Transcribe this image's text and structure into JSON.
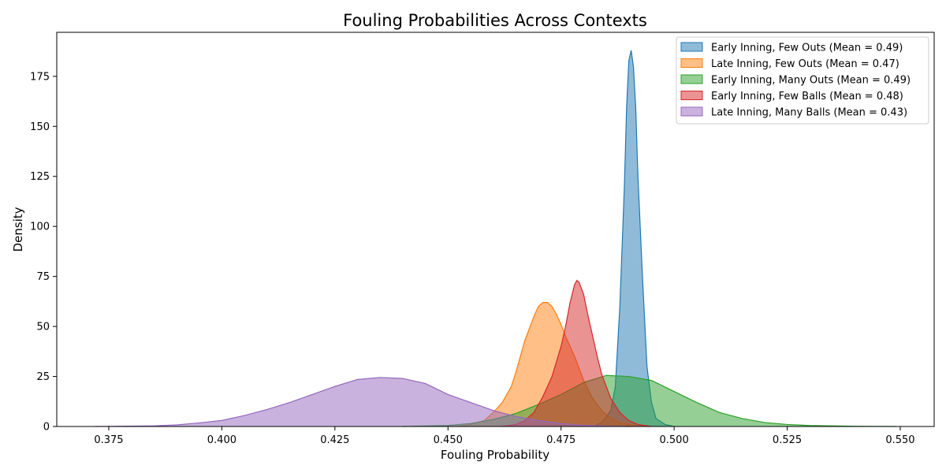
{
  "chart_data": {
    "type": "area",
    "title": "Fouling Probabilities Across Contexts",
    "xlabel": "Fouling Probability",
    "ylabel": "Density",
    "xlim": [
      0.3635,
      0.5575
    ],
    "ylim": [
      0,
      197
    ],
    "x_ticks": [
      "0.375",
      "0.400",
      "0.425",
      "0.450",
      "0.475",
      "0.500",
      "0.525",
      "0.550"
    ],
    "y_ticks": [
      "0",
      "25",
      "50",
      "75",
      "100",
      "125",
      "150",
      "175"
    ],
    "grid": false,
    "legend_position": "top-right",
    "series": [
      {
        "name": "Early Inning, Few Outs (Mean = 0.49)",
        "color": "#1f77b4",
        "points": [
          [
            0.482,
            0
          ],
          [
            0.484,
            2
          ],
          [
            0.486,
            8
          ],
          [
            0.487,
            20
          ],
          [
            0.488,
            60
          ],
          [
            0.489,
            120
          ],
          [
            0.4895,
            160
          ],
          [
            0.49,
            183
          ],
          [
            0.4905,
            188
          ],
          [
            0.491,
            180
          ],
          [
            0.4915,
            160
          ],
          [
            0.492,
            125
          ],
          [
            0.493,
            75
          ],
          [
            0.494,
            30
          ],
          [
            0.495,
            12
          ],
          [
            0.496,
            4
          ],
          [
            0.498,
            1
          ],
          [
            0.5,
            0
          ]
        ]
      },
      {
        "name": "Late Inning, Few Outs (Mean = 0.47)",
        "color": "#ff7f0e",
        "points": [
          [
            0.452,
            0
          ],
          [
            0.455,
            1
          ],
          [
            0.458,
            3
          ],
          [
            0.46,
            7
          ],
          [
            0.462,
            12
          ],
          [
            0.464,
            20
          ],
          [
            0.465,
            27
          ],
          [
            0.466,
            35
          ],
          [
            0.467,
            43
          ],
          [
            0.468,
            49
          ],
          [
            0.469,
            55
          ],
          [
            0.47,
            60
          ],
          [
            0.471,
            62
          ],
          [
            0.472,
            62
          ],
          [
            0.473,
            60
          ],
          [
            0.474,
            56
          ],
          [
            0.475,
            51
          ],
          [
            0.476,
            45
          ],
          [
            0.478,
            35
          ],
          [
            0.48,
            23
          ],
          [
            0.482,
            14
          ],
          [
            0.484,
            8
          ],
          [
            0.486,
            4
          ],
          [
            0.488,
            2
          ],
          [
            0.49,
            1
          ],
          [
            0.492,
            0
          ]
        ]
      },
      {
        "name": "Early Inning, Many Outs (Mean = 0.49)",
        "color": "#2ca02c",
        "points": [
          [
            0.44,
            0
          ],
          [
            0.45,
            0.5
          ],
          [
            0.455,
            1.5
          ],
          [
            0.46,
            3.5
          ],
          [
            0.465,
            6.5
          ],
          [
            0.47,
            11
          ],
          [
            0.475,
            16
          ],
          [
            0.48,
            22
          ],
          [
            0.485,
            25.5
          ],
          [
            0.49,
            25
          ],
          [
            0.495,
            23
          ],
          [
            0.5,
            17.5
          ],
          [
            0.505,
            12
          ],
          [
            0.51,
            7
          ],
          [
            0.515,
            4
          ],
          [
            0.52,
            2
          ],
          [
            0.525,
            1
          ],
          [
            0.53,
            0.5
          ],
          [
            0.54,
            0.1
          ],
          [
            0.549,
            0
          ]
        ]
      },
      {
        "name": "Early Inning, Few Balls (Mean = 0.48)",
        "color": "#d62728",
        "points": [
          [
            0.462,
            0
          ],
          [
            0.465,
            1
          ],
          [
            0.467,
            3
          ],
          [
            0.469,
            7
          ],
          [
            0.471,
            15
          ],
          [
            0.473,
            25
          ],
          [
            0.475,
            40
          ],
          [
            0.476,
            50
          ],
          [
            0.477,
            62
          ],
          [
            0.478,
            71
          ],
          [
            0.4785,
            73
          ],
          [
            0.479,
            72
          ],
          [
            0.48,
            66
          ],
          [
            0.481,
            55
          ],
          [
            0.482,
            45
          ],
          [
            0.483,
            35
          ],
          [
            0.484,
            26
          ],
          [
            0.486,
            14
          ],
          [
            0.488,
            7
          ],
          [
            0.49,
            3
          ],
          [
            0.492,
            1
          ],
          [
            0.495,
            0
          ]
        ]
      },
      {
        "name": "Late Inning, Many Balls (Mean = 0.43)",
        "color": "#9467bd",
        "points": [
          [
            0.372,
            0
          ],
          [
            0.385,
            0.3
          ],
          [
            0.39,
            0.8
          ],
          [
            0.395,
            1.8
          ],
          [
            0.4,
            3
          ],
          [
            0.405,
            5.5
          ],
          [
            0.41,
            8.5
          ],
          [
            0.415,
            12
          ],
          [
            0.42,
            16
          ],
          [
            0.425,
            20
          ],
          [
            0.43,
            23.5
          ],
          [
            0.435,
            24.5
          ],
          [
            0.44,
            24
          ],
          [
            0.445,
            21.5
          ],
          [
            0.45,
            16
          ],
          [
            0.455,
            12
          ],
          [
            0.46,
            8
          ],
          [
            0.465,
            5
          ],
          [
            0.47,
            3
          ],
          [
            0.475,
            1.5
          ],
          [
            0.48,
            0.6
          ],
          [
            0.485,
            0.2
          ],
          [
            0.49,
            0
          ]
        ]
      }
    ]
  }
}
